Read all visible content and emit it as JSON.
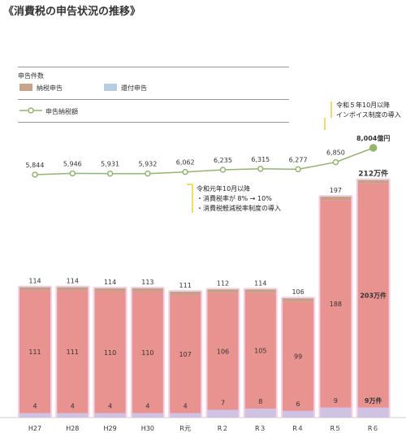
{
  "title": "《消費税の申告状況の推移》",
  "legend": {
    "header": "申告件数",
    "items": [
      {
        "label": "納税申告",
        "color": "#c8a48c"
      },
      {
        "label": "還付申告",
        "color": "#b8cde0"
      }
    ],
    "line_label": "申告納税額"
  },
  "annotations": {
    "r1": {
      "title": "令和元年10月以降",
      "lines": [
        "・消費税率が 8% → 10%",
        "・消費税軽減税率制度の導入"
      ]
    },
    "r5": {
      "title": "令和５年10月以降",
      "lines": [
        "インボイス制度の導入"
      ]
    }
  },
  "chart_data": {
    "type": "bar",
    "categories": [
      "H27",
      "H28",
      "H29",
      "H30",
      "R元",
      "R２",
      "R３",
      "R４",
      "R５",
      "R６"
    ],
    "bar_totals": [
      "114",
      "114",
      "114",
      "113",
      "111",
      "112",
      "114",
      "106",
      "197",
      "212万件"
    ],
    "series": [
      {
        "name": "納税申告",
        "values": [
          111,
          111,
          110,
          110,
          107,
          106,
          105,
          99,
          188,
          203
        ],
        "labels": [
          "111",
          "111",
          "110",
          "110",
          "107",
          "106",
          "105",
          "99",
          "188",
          "203万件"
        ]
      },
      {
        "name": "還付申告",
        "values": [
          4,
          4,
          4,
          4,
          4,
          7,
          8,
          6,
          9,
          9
        ],
        "labels": [
          "4",
          "4",
          "4",
          "4",
          "4",
          "7",
          "8",
          "6",
          "9",
          "9万件"
        ]
      }
    ],
    "line": {
      "name": "申告納税額",
      "values": [
        5844,
        5946,
        5931,
        5932,
        6062,
        6235,
        6315,
        6277,
        6850,
        8004
      ],
      "labels": [
        "5,844",
        "5,946",
        "5,931",
        "5,932",
        "6,062",
        "6,235",
        "6,315",
        "6,277",
        "6,850",
        "8,004億円"
      ]
    },
    "colors": {
      "payment": "#e99391",
      "refund": "#cfc2e2",
      "bar_top": "#c4a28a",
      "line": "#93b66f",
      "glow": "#f4cfe6"
    }
  }
}
